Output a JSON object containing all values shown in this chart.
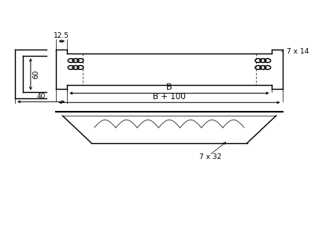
{
  "bg_color": "#ffffff",
  "line_color": "#000000",
  "line_width": 1.0,
  "thin_line": 0.5,
  "fig_width": 4.0,
  "fig_height": 3.0,
  "dpi": 100,
  "dim_12_5": "12.5",
  "dim_60": "60",
  "dim_40": "40",
  "dim_B": "B",
  "dim_B100": "B + 100",
  "dim_7x14": "7 x 14",
  "dim_7x32": "7 x 32"
}
